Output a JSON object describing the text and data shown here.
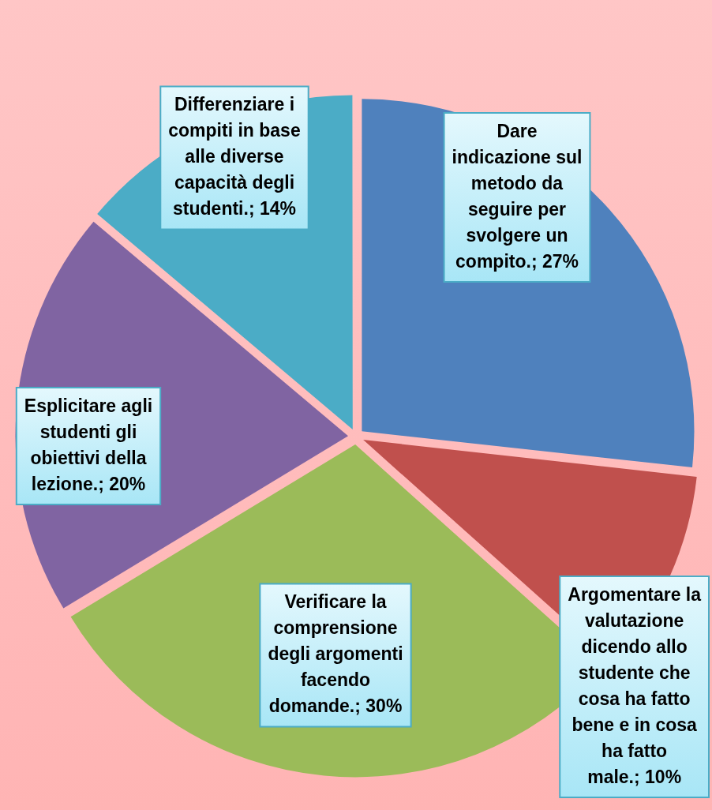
{
  "chart_data": {
    "type": "pie",
    "categories": [
      "Dare indicazione sul metodo da seguire per svolgere un compito.",
      "Argomentare la valutazione dicendo allo studente che cosa ha fatto bene e in cosa ha fatto male.",
      "Verificare la comprensione degli argomenti facendo domande.",
      "Esplicitare agli studenti gli obiettivi della lezione.",
      "Differenziare i compiti in base alle diverse capacità degli studenti."
    ],
    "values": [
      27,
      10,
      30,
      20,
      14
    ],
    "value_labels": [
      "27%",
      "10%",
      "30%",
      "20%",
      "14%"
    ],
    "colors": [
      "#4f81bd",
      "#c0504d",
      "#9bbb59",
      "#8064a2",
      "#4bacc6"
    ],
    "legend": false
  }
}
